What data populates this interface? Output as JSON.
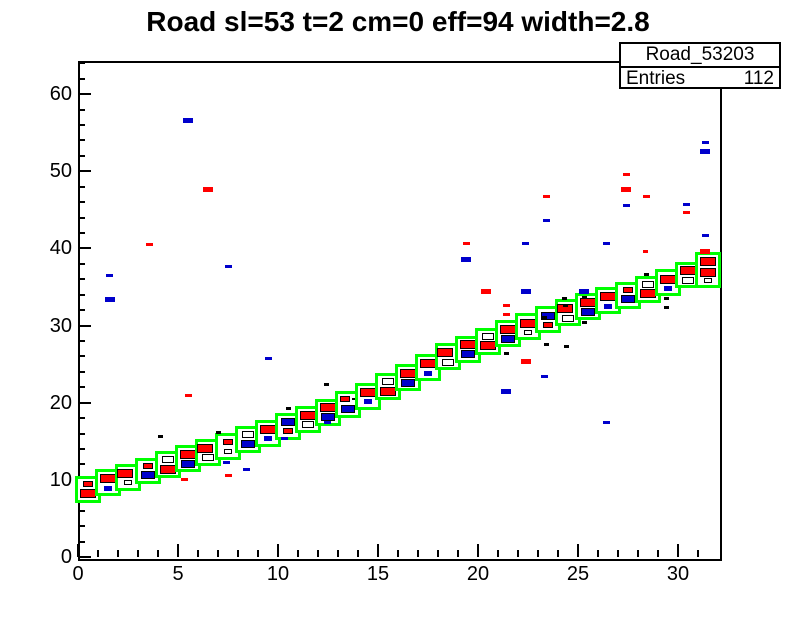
{
  "window": {
    "title": "Road sl=53 t=2 cm=0 eff=94 width=2.8"
  },
  "stats_box": {
    "histogram_name": "Road_53203",
    "entries_label": "Entries",
    "entries_value": "112"
  },
  "colors": {
    "road_outline": "#00ff00",
    "marker_red": "#ff0000",
    "marker_blue": "#0000cc",
    "marker_black": "#000000",
    "frame": "#000000",
    "background": "#ffffff"
  },
  "chart_data": {
    "type": "heatmap",
    "subtype": "ROOT TH2 box-plot with green road band overlay",
    "title": "Road sl=53 t=2 cm=0 eff=94 width=2.8",
    "xlabel": "",
    "ylabel": "",
    "xlim": [
      0,
      32
    ],
    "ylim": [
      0,
      64.3
    ],
    "grid": false,
    "x_major_ticks": [
      {
        "v": 0,
        "label": "0"
      },
      {
        "v": 5,
        "label": "5"
      },
      {
        "v": 10,
        "label": "10"
      },
      {
        "v": 15,
        "label": "15"
      },
      {
        "v": 20,
        "label": "20"
      },
      {
        "v": 25,
        "label": "25"
      },
      {
        "v": 30,
        "label": "30"
      }
    ],
    "x_minor_ticks": [
      1,
      2,
      3,
      4,
      6,
      7,
      8,
      9,
      11,
      12,
      13,
      14,
      16,
      17,
      18,
      19,
      21,
      22,
      23,
      24,
      26,
      27,
      28,
      29,
      31
    ],
    "y_major_ticks": [
      {
        "v": 0,
        "label": "0"
      },
      {
        "v": 10,
        "label": "10"
      },
      {
        "v": 20,
        "label": "20"
      },
      {
        "v": 30,
        "label": "30"
      },
      {
        "v": 40,
        "label": "40"
      },
      {
        "v": 50,
        "label": "50"
      },
      {
        "v": 60,
        "label": "60"
      }
    ],
    "y_minor_ticks": [
      2,
      4,
      6,
      8,
      12,
      14,
      16,
      18,
      22,
      24,
      26,
      28,
      32,
      34,
      36,
      38,
      42,
      44,
      46,
      48,
      52,
      54,
      56,
      58,
      62,
      64
    ],
    "marker_defs": {
      "R": {
        "w": 16,
        "h": 9,
        "color": "#ff0000",
        "outline": true
      },
      "r": {
        "w": 10,
        "h": 6,
        "color": "#ff0000",
        "outline": true
      },
      "B": {
        "w": 14,
        "h": 8,
        "color": "#0000cc",
        "outline": true
      },
      "b": {
        "w": 8,
        "h": 5,
        "color": "#0000cc",
        "outline": false
      },
      "W": {
        "w": 12,
        "h": 7,
        "color": "#ffffff",
        "outline": true
      },
      "w": {
        "w": 8,
        "h": 5,
        "color": "#ffffff",
        "outline": true
      },
      "K": {
        "w": 5,
        "h": 3,
        "color": "#000000",
        "outline": false
      },
      "k": {
        "w": 4,
        "h": 2,
        "color": "#000000",
        "outline": false
      }
    },
    "road_cells": [
      {
        "x": 0,
        "yb": 7.4,
        "h": 2.7,
        "rows": [
          [
            "r"
          ],
          [
            "R"
          ]
        ]
      },
      {
        "x": 1,
        "yb": 8.3,
        "h": 2.7,
        "rows": [
          [
            "R"
          ],
          [
            "b"
          ]
        ]
      },
      {
        "x": 2,
        "yb": 9.0,
        "h": 2.7,
        "rows": [
          [
            "R",
            "k"
          ],
          [
            "w"
          ]
        ]
      },
      {
        "x": 3,
        "yb": 9.8,
        "h": 2.7,
        "rows": [
          [
            "r"
          ],
          [
            "B"
          ]
        ]
      },
      {
        "x": 4,
        "yb": 10.6,
        "h": 2.7,
        "rows": [
          [
            "W"
          ],
          [
            "R"
          ]
        ]
      },
      {
        "x": 5,
        "yb": 11.4,
        "h": 2.7,
        "rows": [
          [
            "R"
          ],
          [
            "B"
          ]
        ]
      },
      {
        "x": 6,
        "yb": 12.2,
        "h": 2.7,
        "rows": [
          [
            "R",
            "k"
          ],
          [
            "W"
          ]
        ]
      },
      {
        "x": 7,
        "yb": 13.0,
        "h": 2.7,
        "rows": [
          [
            "r"
          ],
          [
            "w"
          ]
        ]
      },
      {
        "x": 8,
        "yb": 13.9,
        "h": 2.7,
        "rows": [
          [
            "W"
          ],
          [
            "B"
          ]
        ]
      },
      {
        "x": 9,
        "yb": 14.7,
        "h": 2.7,
        "rows": [
          [
            "R"
          ],
          [
            "b"
          ]
        ]
      },
      {
        "x": 10,
        "yb": 15.6,
        "h": 2.7,
        "rows": [
          [
            "B"
          ],
          [
            "r"
          ]
        ]
      },
      {
        "x": 11,
        "yb": 16.5,
        "h": 2.7,
        "rows": [
          [
            "R"
          ],
          [
            "W"
          ]
        ]
      },
      {
        "x": 12,
        "yb": 17.4,
        "h": 2.7,
        "rows": [
          [
            "R"
          ],
          [
            "B"
          ]
        ]
      },
      {
        "x": 13,
        "yb": 18.4,
        "h": 2.7,
        "rows": [
          [
            "r",
            "k"
          ],
          [
            "B"
          ]
        ]
      },
      {
        "x": 14,
        "yb": 19.5,
        "h": 2.7,
        "rows": [
          [
            "R"
          ],
          [
            "b"
          ]
        ]
      },
      {
        "x": 15,
        "yb": 20.7,
        "h": 2.7,
        "rows": [
          [
            "W"
          ],
          [
            "R"
          ]
        ]
      },
      {
        "x": 16,
        "yb": 21.9,
        "h": 2.7,
        "rows": [
          [
            "R"
          ],
          [
            "B"
          ]
        ]
      },
      {
        "x": 17,
        "yb": 23.2,
        "h": 2.7,
        "rows": [
          [
            "R"
          ],
          [
            "b"
          ]
        ]
      },
      {
        "x": 18,
        "yb": 24.6,
        "h": 2.7,
        "rows": [
          [
            "R",
            "k"
          ],
          [
            "W"
          ]
        ]
      },
      {
        "x": 19,
        "yb": 25.6,
        "h": 2.7,
        "rows": [
          [
            "R"
          ],
          [
            "B"
          ]
        ]
      },
      {
        "x": 20,
        "yb": 26.6,
        "h": 2.7,
        "rows": [
          [
            "W"
          ],
          [
            "R"
          ]
        ]
      },
      {
        "x": 21,
        "yb": 27.6,
        "h": 2.7,
        "rows": [
          [
            "R"
          ],
          [
            "B"
          ]
        ]
      },
      {
        "x": 22,
        "yb": 28.5,
        "h": 2.7,
        "rows": [
          [
            "R"
          ],
          [
            "w"
          ]
        ]
      },
      {
        "x": 23,
        "yb": 29.4,
        "h": 2.7,
        "rows": [
          [
            "B"
          ],
          [
            "r"
          ]
        ]
      },
      {
        "x": 24,
        "yb": 30.3,
        "h": 2.7,
        "rows": [
          [
            "R",
            "k"
          ],
          [
            "W"
          ]
        ]
      },
      {
        "x": 25,
        "yb": 31.1,
        "h": 2.7,
        "rows": [
          [
            "R"
          ],
          [
            "B"
          ]
        ]
      },
      {
        "x": 26,
        "yb": 31.9,
        "h": 2.7,
        "rows": [
          [
            "R"
          ],
          [
            "b"
          ]
        ]
      },
      {
        "x": 27,
        "yb": 32.6,
        "h": 2.7,
        "rows": [
          [
            "r"
          ],
          [
            "B"
          ]
        ]
      },
      {
        "x": 28,
        "yb": 33.3,
        "h": 2.7,
        "rows": [
          [
            "W"
          ],
          [
            "R"
          ]
        ]
      },
      {
        "x": 29,
        "yb": 34.2,
        "h": 2.7,
        "rows": [
          [
            "R"
          ],
          [
            "b"
          ]
        ]
      },
      {
        "x": 30,
        "yb": 35.2,
        "h": 2.7,
        "rows": [
          [
            "R"
          ],
          [
            "W"
          ]
        ]
      },
      {
        "x": 31,
        "yb": 35.3,
        "h": 3.8,
        "rows": [
          [
            "R"
          ],
          [
            "R"
          ],
          [
            "w"
          ]
        ]
      }
    ],
    "outliers": [
      {
        "x": 5.5,
        "y": 56.6,
        "c": "blue",
        "s": "m"
      },
      {
        "x": 31.35,
        "y": 53.7,
        "c": "blue",
        "s": "s"
      },
      {
        "x": 31.35,
        "y": 52.6,
        "c": "blue",
        "s": "m"
      },
      {
        "x": 27.4,
        "y": 49.6,
        "c": "red",
        "s": "s"
      },
      {
        "x": 6.5,
        "y": 47.6,
        "c": "red",
        "s": "m"
      },
      {
        "x": 27.4,
        "y": 47.6,
        "c": "red",
        "s": "m"
      },
      {
        "x": 23.4,
        "y": 46.7,
        "c": "red",
        "s": "s"
      },
      {
        "x": 28.4,
        "y": 46.7,
        "c": "red",
        "s": "s"
      },
      {
        "x": 27.4,
        "y": 45.6,
        "c": "blue",
        "s": "s"
      },
      {
        "x": 30.4,
        "y": 45.7,
        "c": "blue",
        "s": "s"
      },
      {
        "x": 30.4,
        "y": 44.6,
        "c": "red",
        "s": "s"
      },
      {
        "x": 23.4,
        "y": 43.6,
        "c": "blue",
        "s": "s"
      },
      {
        "x": 31.35,
        "y": 41.7,
        "c": "blue",
        "s": "s"
      },
      {
        "x": 19.4,
        "y": 40.6,
        "c": "red",
        "s": "s"
      },
      {
        "x": 22.35,
        "y": 40.6,
        "c": "blue",
        "s": "s"
      },
      {
        "x": 26.4,
        "y": 40.6,
        "c": "blue",
        "s": "s"
      },
      {
        "x": 3.55,
        "y": 40.5,
        "c": "red",
        "s": "s"
      },
      {
        "x": 31.35,
        "y": 39.6,
        "c": "red",
        "s": "m"
      },
      {
        "x": 28.35,
        "y": 39.6,
        "c": "red",
        "s": "t"
      },
      {
        "x": 19.4,
        "y": 38.6,
        "c": "blue",
        "s": "m"
      },
      {
        "x": 7.5,
        "y": 37.6,
        "c": "blue",
        "s": "s"
      },
      {
        "x": 1.55,
        "y": 36.5,
        "c": "blue",
        "s": "s"
      },
      {
        "x": 28.4,
        "y": 36.6,
        "c": "black",
        "s": "t"
      },
      {
        "x": 20.4,
        "y": 34.4,
        "c": "red",
        "s": "m"
      },
      {
        "x": 22.4,
        "y": 34.4,
        "c": "blue",
        "s": "m"
      },
      {
        "x": 25.3,
        "y": 34.4,
        "c": "blue",
        "s": "m"
      },
      {
        "x": 24.3,
        "y": 33.5,
        "c": "black",
        "s": "t"
      },
      {
        "x": 25.3,
        "y": 33.7,
        "c": "black",
        "s": "t"
      },
      {
        "x": 29.4,
        "y": 33.5,
        "c": "black",
        "s": "t"
      },
      {
        "x": 1.6,
        "y": 33.4,
        "c": "blue",
        "s": "m"
      },
      {
        "x": 21.4,
        "y": 32.6,
        "c": "red",
        "s": "s"
      },
      {
        "x": 24.35,
        "y": 32.6,
        "c": "black",
        "s": "t"
      },
      {
        "x": 29.4,
        "y": 32.3,
        "c": "black",
        "s": "t"
      },
      {
        "x": 21.4,
        "y": 31.5,
        "c": "red",
        "s": "s"
      },
      {
        "x": 23.3,
        "y": 31.1,
        "c": "black",
        "s": "t"
      },
      {
        "x": 25.3,
        "y": 30.4,
        "c": "black",
        "s": "t"
      },
      {
        "x": 23.4,
        "y": 27.5,
        "c": "black",
        "s": "t"
      },
      {
        "x": 24.4,
        "y": 27.3,
        "c": "black",
        "s": "t"
      },
      {
        "x": 21.4,
        "y": 26.4,
        "c": "black",
        "s": "t"
      },
      {
        "x": 9.5,
        "y": 25.7,
        "c": "blue",
        "s": "s"
      },
      {
        "x": 22.4,
        "y": 25.4,
        "c": "red",
        "s": "m"
      },
      {
        "x": 23.3,
        "y": 23.4,
        "c": "blue",
        "s": "s"
      },
      {
        "x": 12.4,
        "y": 22.3,
        "c": "black",
        "s": "t"
      },
      {
        "x": 21.4,
        "y": 21.4,
        "c": "blue",
        "s": "m"
      },
      {
        "x": 5.5,
        "y": 20.9,
        "c": "red",
        "s": "s"
      },
      {
        "x": 10.5,
        "y": 19.3,
        "c": "black",
        "s": "t"
      },
      {
        "x": 26.4,
        "y": 17.5,
        "c": "blue",
        "s": "s"
      },
      {
        "x": 12.45,
        "y": 17.4,
        "c": "blue",
        "s": "s"
      },
      {
        "x": 7.0,
        "y": 16.2,
        "c": "black",
        "s": "t"
      },
      {
        "x": 4.1,
        "y": 15.6,
        "c": "black",
        "s": "t"
      },
      {
        "x": 10.3,
        "y": 15.4,
        "c": "blue",
        "s": "s"
      },
      {
        "x": 7.4,
        "y": 12.3,
        "c": "blue",
        "s": "s"
      },
      {
        "x": 8.4,
        "y": 11.3,
        "c": "blue",
        "s": "s"
      },
      {
        "x": 7.5,
        "y": 10.6,
        "c": "red",
        "s": "s"
      },
      {
        "x": 5.3,
        "y": 10.1,
        "c": "red",
        "s": "s"
      }
    ],
    "outlier_size_defs": {
      "m": {
        "w": 10,
        "h": 5
      },
      "s": {
        "w": 7,
        "h": 3
      },
      "t": {
        "w": 5,
        "h": 3
      }
    }
  }
}
